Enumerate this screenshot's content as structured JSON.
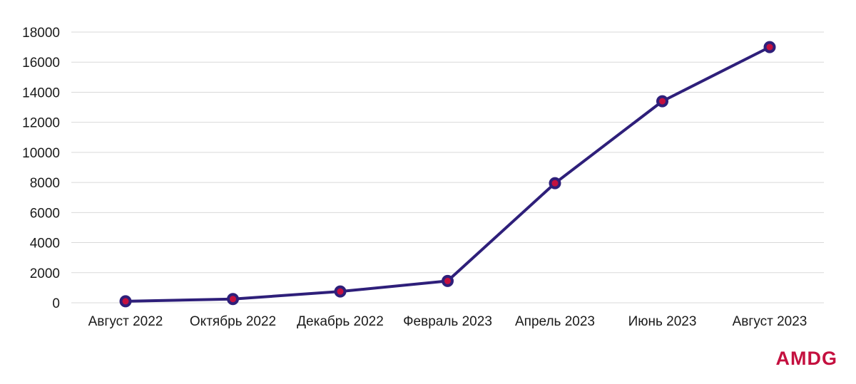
{
  "chart_data": {
    "type": "line",
    "categories": [
      "Август 2022",
      "Октябрь 2022",
      "Декабрь 2022",
      "Февраль 2023",
      "Апрель 2023",
      "Июнь 2023",
      "Август 2023"
    ],
    "series": [
      {
        "values": [
          100,
          250,
          750,
          1450,
          7950,
          13400,
          17000
        ]
      }
    ],
    "ylim": [
      0,
      18000
    ],
    "yticks": [
      0,
      2000,
      4000,
      6000,
      8000,
      10000,
      12000,
      14000,
      16000,
      18000
    ],
    "grid": true,
    "legend": "none",
    "title": "",
    "xlabel": "",
    "ylabel": ""
  },
  "colors": {
    "line": "#2e1f7a",
    "marker_fill": "#c4103f",
    "marker_edge": "#2e1f7a",
    "grid": "#d9d9d9",
    "logo": "#c4103f"
  },
  "brand": {
    "logo_text": "AMDG"
  }
}
